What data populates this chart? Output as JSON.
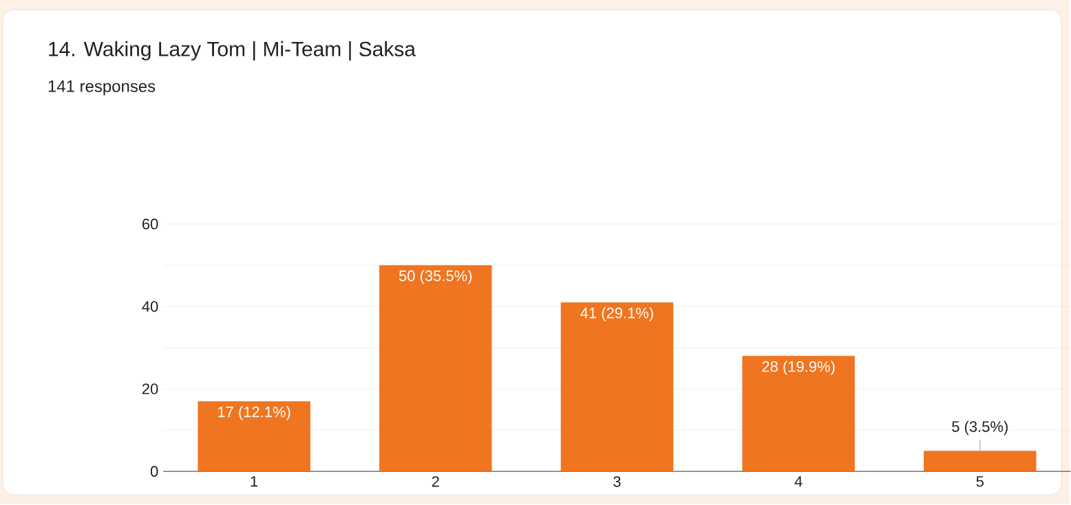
{
  "chart_data": {
    "type": "bar",
    "title": "14. Waking Lazy Tom | Mi-Team | Saksa",
    "subtitle": "141 responses",
    "categories": [
      "1",
      "2",
      "3",
      "4",
      "5"
    ],
    "values": [
      17,
      50,
      41,
      28,
      5
    ],
    "value_labels": [
      "17 (12.1%)",
      "50 (35.5%)",
      "41 (29.1%)",
      "28 (19.9%)",
      "5 (3.5%)"
    ],
    "color": "#f07520",
    "ylim": [
      0,
      60
    ],
    "yticks": [
      0,
      {
        "value": 10,
        "label": null
      },
      20,
      {
        "value": 30,
        "label": null
      },
      40,
      {
        "value": 50,
        "label": null
      },
      60
    ],
    "grid": "y"
  }
}
